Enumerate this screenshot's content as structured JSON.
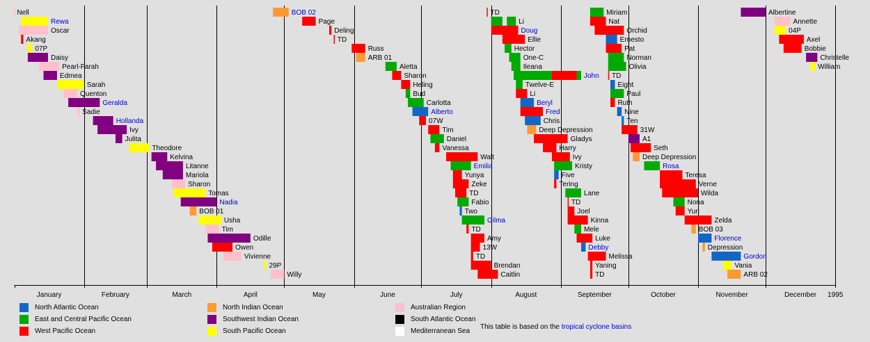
{
  "chart_data": {
    "type": "timeline",
    "x_unit": "day of year 1994",
    "xlim": [
      1,
      366
    ],
    "months": [
      "January",
      "February",
      "March",
      "April",
      "May",
      "June",
      "July",
      "August",
      "September",
      "October",
      "November",
      "December"
    ],
    "month_start_days": [
      1,
      32,
      60,
      91,
      121,
      152,
      182,
      213,
      244,
      274,
      305,
      335
    ],
    "end_label": "1995",
    "basins": [
      {
        "key": "NA",
        "name": "North Atlantic Ocean",
        "color": "#1466c6"
      },
      {
        "key": "EP",
        "name": "East and Central Pacific Ocean",
        "color": "#00aa00"
      },
      {
        "key": "WP",
        "name": "West Pacific Ocean",
        "color": "#ff0000"
      },
      {
        "key": "NI",
        "name": "North Indian Ocean",
        "color": "#ff9933"
      },
      {
        "key": "SWI",
        "name": "Southwest Indian Ocean",
        "color": "#800080"
      },
      {
        "key": "SP",
        "name": "South Pacific Ocean",
        "color": "#ffff00"
      },
      {
        "key": "AUS",
        "name": "Australian Region",
        "color": "#ffc0cb"
      },
      {
        "key": "SA",
        "name": "South Atlantic Ocean",
        "color": "#000000"
      },
      {
        "key": "MED",
        "name": "Mediterranean Sea",
        "color": "#ffffff"
      }
    ],
    "storms": [
      {
        "name": "Nell",
        "start": -5,
        "end": 1,
        "row": 0,
        "basin": "AUS"
      },
      {
        "name": "Rewa",
        "start": 4,
        "end": 16,
        "row": 1,
        "basin": "SP",
        "link": true
      },
      {
        "name": "Oscar",
        "start": 3,
        "end": 16,
        "row": 2,
        "basin": "AUS"
      },
      {
        "name": "Akang",
        "start": 4,
        "end": 5,
        "row": 3,
        "basin": "WP"
      },
      {
        "name": "07P",
        "start": 7,
        "end": 9,
        "row": 4,
        "basin": "SP"
      },
      {
        "name": "Daisy",
        "start": 7,
        "end": 16,
        "row": 5,
        "basin": "SWI"
      },
      {
        "name": "Pearl-Farah",
        "start": 12,
        "end": 21,
        "row": 6,
        "basin": "AUS"
      },
      {
        "name": "Edmea",
        "start": 14,
        "end": 20,
        "row": 7,
        "basin": "SWI"
      },
      {
        "name": "Sarah",
        "start": 20,
        "end": 32,
        "row": 8,
        "basin": "SP"
      },
      {
        "name": "Quenton",
        "start": 23,
        "end": 29,
        "row": 9,
        "basin": "AUS"
      },
      {
        "name": "Geralda",
        "start": 25,
        "end": 39,
        "row": 10,
        "basin": "SWI",
        "link": true
      },
      {
        "name": "Sadie",
        "start": 29,
        "end": 30,
        "row": 11,
        "basin": "AUS"
      },
      {
        "name": "Hollanda",
        "start": 36,
        "end": 45,
        "row": 12,
        "basin": "SWI",
        "link": true
      },
      {
        "name": "Ivy",
        "start": 38,
        "end": 51,
        "row": 13,
        "basin": "SWI"
      },
      {
        "name": "Julita",
        "start": 46,
        "end": 49,
        "row": 14,
        "basin": "SWI"
      },
      {
        "name": "Theodore",
        "start": 52,
        "end": 61,
        "row": 15,
        "basin": "SP"
      },
      {
        "name": "Kelvina",
        "start": 62,
        "end": 69,
        "row": 16,
        "basin": "SWI"
      },
      {
        "name": "Litanne",
        "start": 64,
        "end": 76,
        "row": 17,
        "basin": "SWI"
      },
      {
        "name": "Mariola",
        "start": 67,
        "end": 76,
        "row": 18,
        "basin": "SWI"
      },
      {
        "name": "Sharon",
        "start": 71,
        "end": 77,
        "row": 19,
        "basin": "AUS"
      },
      {
        "name": "Tomas",
        "start": 72,
        "end": 86,
        "row": 20,
        "basin": "SP"
      },
      {
        "name": "Nadia",
        "start": 75,
        "end": 91,
        "row": 21,
        "basin": "SWI",
        "link": true
      },
      {
        "name": "BOB 01",
        "start": 79,
        "end": 82,
        "row": 22,
        "basin": "NI"
      },
      {
        "name": "Usha",
        "start": 83,
        "end": 93,
        "row": 23,
        "basin": "SP"
      },
      {
        "name": "Tim",
        "start": 86,
        "end": 92,
        "row": 24,
        "basin": "AUS"
      },
      {
        "name": "Odille",
        "start": 87,
        "end": 106,
        "row": 25,
        "basin": "SWI"
      },
      {
        "name": "Owen",
        "start": 89,
        "end": 98,
        "row": 26,
        "basin": "WP"
      },
      {
        "name": "Vivienne",
        "start": 94,
        "end": 102,
        "row": 27,
        "basin": "AUS"
      },
      {
        "name": "29P",
        "start": 112,
        "end": 113,
        "row": 28,
        "basin": "SP"
      },
      {
        "name": "Willy",
        "start": 115,
        "end": 121,
        "row": 29,
        "basin": "AUS"
      },
      {
        "name": "BOB 02",
        "start": 116,
        "end": 123,
        "row": 0,
        "basin": "NI",
        "link": true
      },
      {
        "name": "Page",
        "start": 129,
        "end": 135,
        "row": 1,
        "basin": "WP"
      },
      {
        "name": "Deling",
        "start": 141,
        "end": 142,
        "row": 2,
        "basin": "WP"
      },
      {
        "name": "TD",
        "start": 143,
        "end": 143.4,
        "row": 3,
        "basin": "WP"
      },
      {
        "name": "Russ",
        "start": 151,
        "end": 157,
        "row": 4,
        "basin": "WP"
      },
      {
        "name": "ARB 01",
        "start": 153,
        "end": 157,
        "row": 5,
        "basin": "NI"
      },
      {
        "name": "Aletta",
        "start": 166,
        "end": 171,
        "row": 6,
        "basin": "EP"
      },
      {
        "name": "Sharon",
        "start": 169,
        "end": 173,
        "row": 7,
        "basin": "WP"
      },
      {
        "name": "Heling",
        "start": 173,
        "end": 177,
        "row": 8,
        "basin": "WP"
      },
      {
        "name": "Bud",
        "start": 175,
        "end": 177,
        "row": 9,
        "basin": "EP"
      },
      {
        "name": "Carlotta",
        "start": 176,
        "end": 183,
        "row": 10,
        "basin": "EP"
      },
      {
        "name": "Alberto",
        "start": 178,
        "end": 185,
        "row": 11,
        "basin": "NA",
        "link": true
      },
      {
        "name": "07W",
        "start": 181,
        "end": 184,
        "row": 12,
        "basin": "WP"
      },
      {
        "name": "Tim",
        "start": 185,
        "end": 190,
        "row": 13,
        "basin": "WP"
      },
      {
        "name": "Daniel",
        "start": 186,
        "end": 192,
        "row": 14,
        "basin": "EP"
      },
      {
        "name": "Vanessa",
        "start": 188,
        "end": 190,
        "row": 15,
        "basin": "WP"
      },
      {
        "name": "Walt",
        "start": 193,
        "end": 207,
        "row": 16,
        "basin": "WP"
      },
      {
        "name": "Emilia",
        "start": 195,
        "end": 204,
        "row": 17,
        "basin": "EP",
        "link": true
      },
      {
        "name": "Yunya",
        "start": 196,
        "end": 200,
        "row": 18,
        "basin": "WP"
      },
      {
        "name": "Zeke",
        "start": 196,
        "end": 203,
        "row": 19,
        "basin": "WP"
      },
      {
        "name": "TD",
        "start": 197,
        "end": 202,
        "row": 20,
        "basin": "WP"
      },
      {
        "name": "Fabio",
        "start": 198,
        "end": 203,
        "row": 21,
        "basin": "EP"
      },
      {
        "name": "Two",
        "start": 199,
        "end": 200,
        "row": 22,
        "basin": "NA"
      },
      {
        "name": "Gilma",
        "start": 200,
        "end": 210,
        "row": 23,
        "basin": "EP",
        "link": true
      },
      {
        "name": "TD",
        "start": 202,
        "end": 203,
        "row": 24,
        "basin": "WP"
      },
      {
        "name": "Amy",
        "start": 204,
        "end": 210,
        "row": 25,
        "basin": "WP"
      },
      {
        "name": "13W",
        "start": 204,
        "end": 208,
        "row": 26,
        "basin": "WP"
      },
      {
        "name": "TD",
        "start": 204,
        "end": 205,
        "row": 27,
        "basin": "WP"
      },
      {
        "name": "Brendan",
        "start": 204,
        "end": 213,
        "row": 28,
        "basin": "WP"
      },
      {
        "name": "Caitlin",
        "start": 207,
        "end": 216,
        "row": 29,
        "basin": "WP"
      },
      {
        "name": "TD",
        "start": 211,
        "end": 211.4,
        "row": 0,
        "basin": "WP"
      },
      {
        "name": "Li",
        "start": 213,
        "end": 218,
        "row": 1,
        "basin": "EP"
      },
      {
        "name": "Li",
        "start": 220,
        "end": 224,
        "row": 1,
        "basin": "EP"
      },
      {
        "name": "Doug",
        "start": 213,
        "end": 225,
        "row": 2,
        "basin": "WP",
        "link": true
      },
      {
        "name": "Ellie",
        "start": 218,
        "end": 228,
        "row": 3,
        "basin": "WP"
      },
      {
        "name": "Hector",
        "start": 219,
        "end": 222,
        "row": 4,
        "basin": "EP"
      },
      {
        "name": "One-C",
        "start": 221,
        "end": 226,
        "row": 5,
        "basin": "EP"
      },
      {
        "name": "Ileana",
        "start": 222,
        "end": 226,
        "row": 6,
        "basin": "EP"
      },
      {
        "name": "John",
        "start": 223,
        "end": 240,
        "row": 7,
        "basin": "EP",
        "link": true
      },
      {
        "name": "John",
        "start": 240,
        "end": 251,
        "row": 7,
        "basin": "WP"
      },
      {
        "name": "John",
        "start": 251,
        "end": 253,
        "row": 7,
        "basin": "EP"
      },
      {
        "name": "Twelve-E",
        "start": 224,
        "end": 227,
        "row": 8,
        "basin": "EP"
      },
      {
        "name": "Li",
        "start": 224,
        "end": 229,
        "row": 9,
        "basin": "WP"
      },
      {
        "name": "Beryl",
        "start": 226,
        "end": 232,
        "row": 10,
        "basin": "NA",
        "link": true
      },
      {
        "name": "Fred",
        "start": 226,
        "end": 236,
        "row": 11,
        "basin": "WP",
        "link": true
      },
      {
        "name": "Chris",
        "start": 228,
        "end": 235,
        "row": 12,
        "basin": "NA"
      },
      {
        "name": "Deep Depression",
        "start": 229,
        "end": 233,
        "row": 13,
        "basin": "NI"
      },
      {
        "name": "Gladys",
        "start": 232,
        "end": 247,
        "row": 14,
        "basin": "WP"
      },
      {
        "name": "Harry",
        "start": 236,
        "end": 242,
        "row": 15,
        "basin": "WP"
      },
      {
        "name": "Ivy",
        "start": 240,
        "end": 248,
        "row": 16,
        "basin": "WP"
      },
      {
        "name": "Kristy",
        "start": 241,
        "end": 249,
        "row": 17,
        "basin": "EP"
      },
      {
        "name": "Five",
        "start": 241,
        "end": 243,
        "row": 18,
        "basin": "NA"
      },
      {
        "name": "Tering",
        "start": 241,
        "end": 242,
        "row": 19,
        "basin": "WP"
      },
      {
        "name": "Lane",
        "start": 246,
        "end": 253,
        "row": 20,
        "basin": "EP"
      },
      {
        "name": "TD",
        "start": 247,
        "end": 247.4,
        "row": 21,
        "basin": "WP"
      },
      {
        "name": "Joel",
        "start": 247,
        "end": 250,
        "row": 22,
        "basin": "WP"
      },
      {
        "name": "Kinna",
        "start": 247,
        "end": 256,
        "row": 23,
        "basin": "WP"
      },
      {
        "name": "Mele",
        "start": 250,
        "end": 253,
        "row": 24,
        "basin": "EP"
      },
      {
        "name": "Luke",
        "start": 251,
        "end": 258,
        "row": 25,
        "basin": "WP"
      },
      {
        "name": "Debby",
        "start": 253,
        "end": 255,
        "row": 26,
        "basin": "NA",
        "link": true
      },
      {
        "name": "Melissa",
        "start": 256,
        "end": 264,
        "row": 27,
        "basin": "WP"
      },
      {
        "name": "Yaning",
        "start": 257,
        "end": 258,
        "row": 28,
        "basin": "WP"
      },
      {
        "name": "TD",
        "start": 257,
        "end": 258,
        "row": 29,
        "basin": "WP"
      },
      {
        "name": "Miriam",
        "start": 257,
        "end": 263,
        "row": 0,
        "basin": "EP"
      },
      {
        "name": "Nat",
        "start": 257,
        "end": 264,
        "row": 1,
        "basin": "WP"
      },
      {
        "name": "Orchid",
        "start": 259,
        "end": 272,
        "row": 2,
        "basin": "WP"
      },
      {
        "name": "Ernesto",
        "start": 264,
        "end": 269,
        "row": 3,
        "basin": "NA"
      },
      {
        "name": "Pat",
        "start": 264,
        "end": 271,
        "row": 4,
        "basin": "WP"
      },
      {
        "name": "Norman",
        "start": 265,
        "end": 272,
        "row": 5,
        "basin": "EP"
      },
      {
        "name": "Olivia",
        "start": 265,
        "end": 273,
        "row": 6,
        "basin": "EP"
      },
      {
        "name": "TD",
        "start": 265,
        "end": 265.4,
        "row": 7,
        "basin": "WP"
      },
      {
        "name": "Eight",
        "start": 266,
        "end": 268,
        "row": 8,
        "basin": "NA"
      },
      {
        "name": "Paul",
        "start": 266,
        "end": 272,
        "row": 9,
        "basin": "EP"
      },
      {
        "name": "Ruth",
        "start": 266,
        "end": 268,
        "row": 10,
        "basin": "WP"
      },
      {
        "name": "Nine",
        "start": 269,
        "end": 271,
        "row": 11,
        "basin": "NA"
      },
      {
        "name": "Ten",
        "start": 271,
        "end": 272,
        "row": 12,
        "basin": "NA"
      },
      {
        "name": "31W",
        "start": 271,
        "end": 278,
        "row": 13,
        "basin": "WP"
      },
      {
        "name": "A1",
        "start": 274,
        "end": 279,
        "row": 14,
        "basin": "SWI"
      },
      {
        "name": "Seth",
        "start": 275,
        "end": 284,
        "row": 15,
        "basin": "WP"
      },
      {
        "name": "Deep Depression",
        "start": 276,
        "end": 279,
        "row": 16,
        "basin": "NI"
      },
      {
        "name": "Rosa",
        "start": 281,
        "end": 288,
        "row": 17,
        "basin": "EP",
        "link": true
      },
      {
        "name": "Teresa",
        "start": 288,
        "end": 298,
        "row": 18,
        "basin": "WP"
      },
      {
        "name": "Verne",
        "start": 288,
        "end": 304,
        "row": 19,
        "basin": "WP"
      },
      {
        "name": "Wilda",
        "start": 289,
        "end": 305,
        "row": 20,
        "basin": "WP"
      },
      {
        "name": "Nona",
        "start": 294,
        "end": 299,
        "row": 21,
        "basin": "EP"
      },
      {
        "name": "Yuri",
        "start": 295,
        "end": 299,
        "row": 22,
        "basin": "WP"
      },
      {
        "name": "Zelda",
        "start": 299,
        "end": 311,
        "row": 23,
        "basin": "WP"
      },
      {
        "name": "BOB 03",
        "start": 302,
        "end": 304,
        "row": 24,
        "basin": "NI"
      },
      {
        "name": "Florence",
        "start": 305,
        "end": 311,
        "row": 25,
        "basin": "NA",
        "link": true
      },
      {
        "name": "Depression",
        "start": 307,
        "end": 308,
        "row": 26,
        "basin": "NI"
      },
      {
        "name": "Gordon",
        "start": 311,
        "end": 324,
        "row": 27,
        "basin": "NA",
        "link": true
      },
      {
        "name": "Vania",
        "start": 316,
        "end": 320,
        "row": 28,
        "basin": "SP"
      },
      {
        "name": "ARB 02",
        "start": 318,
        "end": 324,
        "row": 29,
        "basin": "NI"
      },
      {
        "name": "Albertine",
        "start": 324,
        "end": 335,
        "row": 0,
        "basin": "SWI"
      },
      {
        "name": "Annette",
        "start": 339,
        "end": 346,
        "row": 1,
        "basin": "AUS"
      },
      {
        "name": "04P",
        "start": 339,
        "end": 344,
        "row": 2,
        "basin": "SP"
      },
      {
        "name": "Axel",
        "start": 341,
        "end": 352,
        "row": 3,
        "basin": "WP"
      },
      {
        "name": "Bobbie",
        "start": 343,
        "end": 351,
        "row": 4,
        "basin": "WP"
      },
      {
        "name": "Christelle",
        "start": 353,
        "end": 358,
        "row": 5,
        "basin": "SWI"
      },
      {
        "name": "William",
        "start": 355,
        "end": 357,
        "row": 6,
        "basin": "SP"
      }
    ]
  },
  "footnote": {
    "prefix": "This table is based on the ",
    "link": "tropical cyclone basins"
  }
}
